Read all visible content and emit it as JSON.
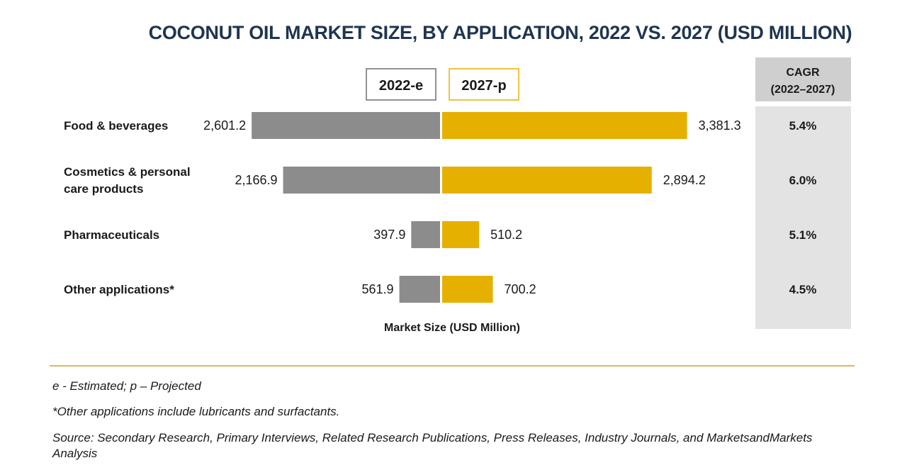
{
  "colors": {
    "series_2022": "#8c8c8c",
    "series_2027": "#e6b000",
    "cagr_bg": "#e3e3e3",
    "cagr_head_bg": "#cfcfcf",
    "rule": "#c9a227",
    "title": "#1f3550"
  },
  "chart_data": {
    "type": "bar",
    "orientation": "horizontal-diverging",
    "title": "COCONUT OIL MARKET SIZE, BY APPLICATION, 2022 VS. 2027 (USD MILLION)",
    "xlabel": "Market Size (USD Million)",
    "categories": [
      [
        "Food & beverages"
      ],
      [
        "Cosmetics & personal",
        "care products"
      ],
      [
        "Pharmaceuticals"
      ],
      [
        "Other applications*"
      ]
    ],
    "series": [
      {
        "name": "2022-e",
        "values": [
          2601.2,
          2166.9,
          397.9,
          561.9
        ],
        "labels": [
          "2,601.2",
          "2,166.9",
          "397.9",
          "561.9"
        ]
      },
      {
        "name": "2027-p",
        "values": [
          3381.3,
          2894.2,
          510.2,
          700.2
        ],
        "labels": [
          "3,381.3",
          "2,894.2",
          "510.2",
          "700.2"
        ]
      }
    ],
    "cagr": {
      "header": [
        "CAGR",
        "(2022–2027)"
      ],
      "values": [
        "5.4%",
        "6.0%",
        "5.1%",
        "4.5%"
      ]
    },
    "xlim": [
      0,
      3600
    ]
  },
  "footnotes": {
    "estimated": "e - Estimated; p – Projected",
    "other": "*Other applications include lubricants and surfactants.",
    "source": "Source: Secondary Research, Primary Interviews, Related Research Publications, Press Releases, Industry Journals, and MarketsandMarkets Analysis"
  }
}
